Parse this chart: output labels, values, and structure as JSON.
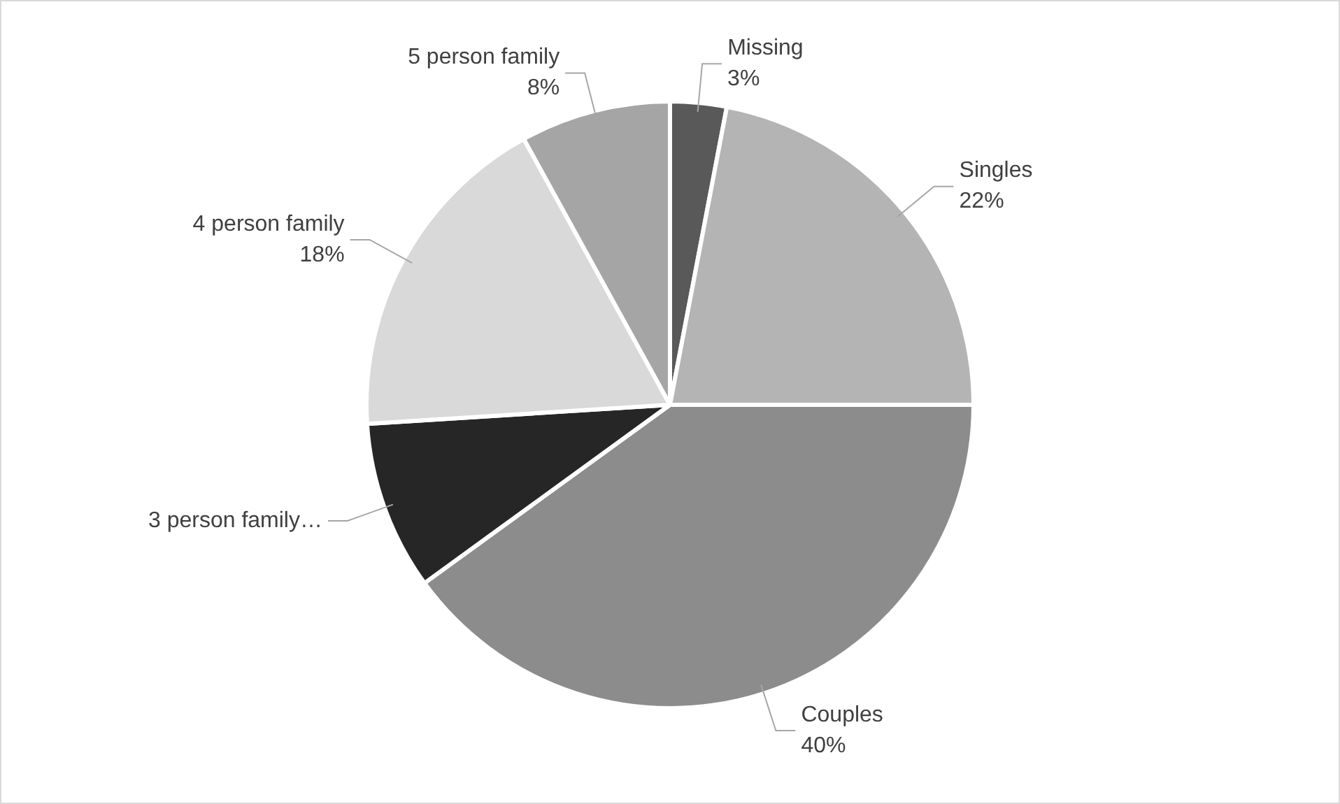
{
  "chart_data": {
    "type": "pie",
    "categories": [
      "Missing",
      "Singles",
      "Couples",
      "3 person family…",
      "4 person family",
      "5 person family"
    ],
    "values": [
      3,
      22,
      40,
      9,
      18,
      8
    ],
    "value_labels": [
      "3%",
      "22%",
      "40%",
      null,
      "18%",
      "8%"
    ],
    "colors": [
      "#595959",
      "#b4b4b4",
      "#8c8c8c",
      "#262626",
      "#d9d9d9",
      "#a5a5a5"
    ],
    "legend": false
  }
}
